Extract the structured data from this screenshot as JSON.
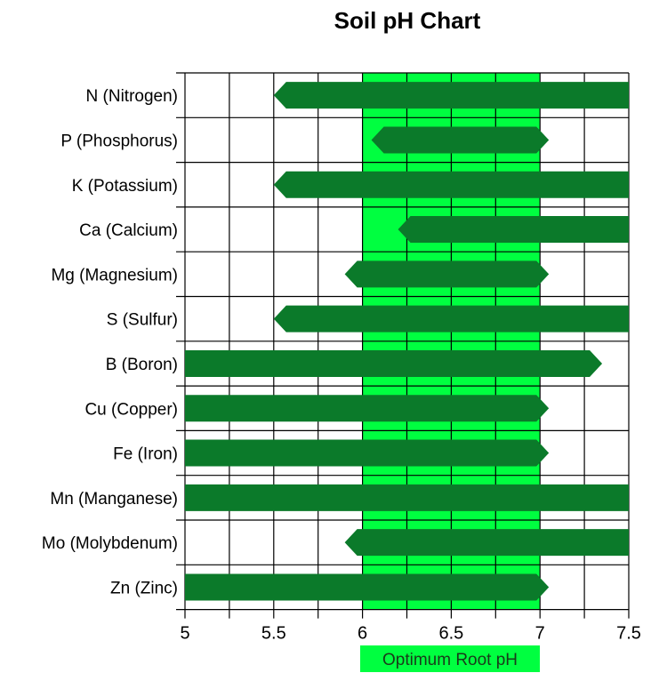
{
  "chart_data": {
    "type": "bar",
    "title": "Soil pH Chart",
    "xlabel": "",
    "ylabel": "",
    "xlim": [
      5,
      7.5
    ],
    "x_ticks": [
      "5",
      "5.5",
      "6",
      "6.5",
      "7",
      "7.5"
    ],
    "grid": true,
    "optimum_band": {
      "label": "Optimum Root pH",
      "start": 6,
      "end": 7,
      "color": "#00ff40"
    },
    "colors": {
      "bar": "#0b7a2a",
      "band": "#00ff40",
      "grid": "#000000"
    },
    "categories": [
      "N (Nitrogen)",
      "P (Phosphorus)",
      "K (Potassium)",
      "Ca (Calcium)",
      "Mg (Magnesium)",
      "S (Sulfur)",
      "B (Boron)",
      "Cu (Copper)",
      "Fe (Iron)",
      "Mn (Manganese)",
      "Mo (Molybdenum)",
      "Zn (Zinc)"
    ],
    "ranges": [
      {
        "start": 5.5,
        "end": 7.5,
        "left_tip": true,
        "right_tip": false
      },
      {
        "start": 6.05,
        "end": 7.05,
        "left_tip": true,
        "right_tip": true
      },
      {
        "start": 5.5,
        "end": 7.5,
        "left_tip": true,
        "right_tip": false
      },
      {
        "start": 6.2,
        "end": 7.5,
        "left_tip": true,
        "right_tip": false
      },
      {
        "start": 5.9,
        "end": 7.05,
        "left_tip": true,
        "right_tip": true
      },
      {
        "start": 5.5,
        "end": 7.5,
        "left_tip": true,
        "right_tip": false
      },
      {
        "start": 5.0,
        "end": 7.35,
        "left_tip": false,
        "right_tip": true
      },
      {
        "start": 5.0,
        "end": 7.05,
        "left_tip": false,
        "right_tip": true
      },
      {
        "start": 5.0,
        "end": 7.05,
        "left_tip": false,
        "right_tip": true
      },
      {
        "start": 5.0,
        "end": 7.5,
        "left_tip": false,
        "right_tip": false
      },
      {
        "start": 5.9,
        "end": 7.5,
        "left_tip": true,
        "right_tip": false
      },
      {
        "start": 5.0,
        "end": 7.05,
        "left_tip": false,
        "right_tip": true
      }
    ]
  }
}
